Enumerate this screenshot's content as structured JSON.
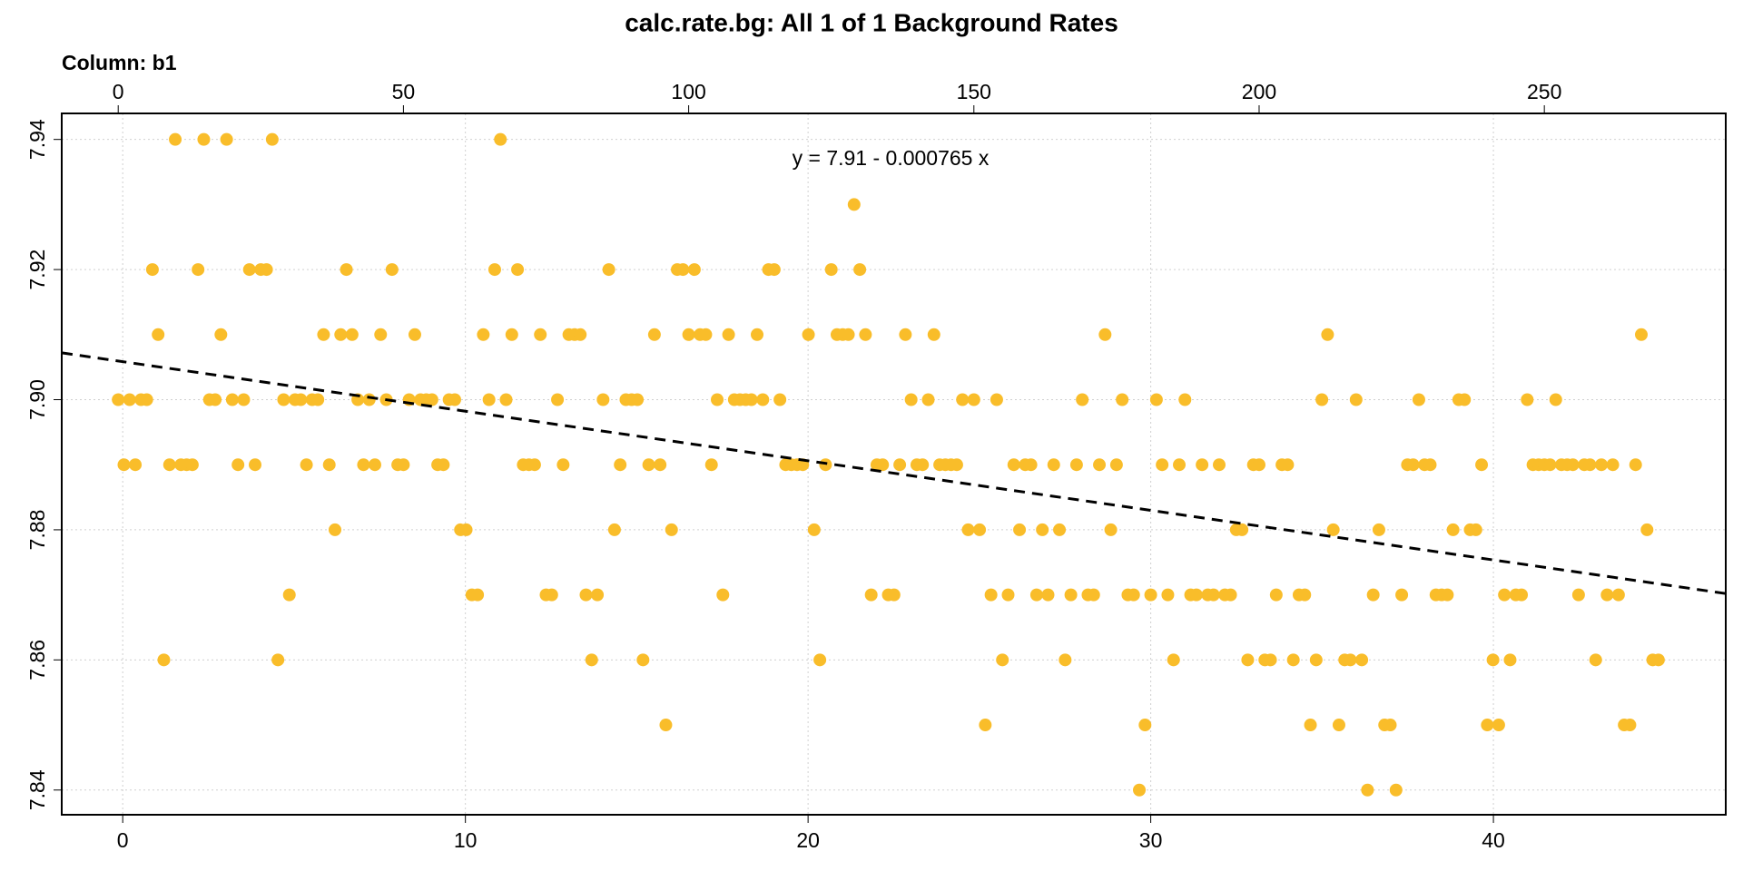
{
  "chart_data": {
    "type": "scatter",
    "title": "calc.rate.bg: All 1 of 1 Background Rates",
    "subtitle": "Column: b1",
    "annotation": "y = 7.91 - 0.000765 x",
    "xlim": [
      -1.78,
      46.78
    ],
    "xticks": [
      0,
      10,
      20,
      30,
      40
    ],
    "x2lim": [
      -9.9,
      281.8
    ],
    "x2ticks": [
      0,
      50,
      100,
      150,
      200,
      250
    ],
    "ylim": [
      7.8362,
      7.944
    ],
    "yticks": [
      7.84,
      7.86,
      7.88,
      {
        "value": 7.9,
        "label": "7.90"
      },
      7.92,
      7.94
    ],
    "grid": true,
    "x_tick_color": "#0000ff",
    "x2_tick_color": "#ff0000",
    "series": [
      {
        "color": "#f9bd2a",
        "axis": "x2",
        "x": [
          0,
          1,
          2,
          3,
          4,
          5,
          6,
          7,
          8,
          9,
          10,
          11,
          12,
          13,
          14,
          15,
          16,
          17,
          18,
          19,
          20,
          21,
          22,
          23,
          24,
          25,
          26,
          27,
          28,
          29,
          30,
          31,
          32,
          33,
          34,
          35,
          36,
          37,
          38,
          39,
          40,
          41,
          42,
          43,
          44,
          45,
          46,
          47,
          48,
          49,
          50,
          51,
          52,
          53,
          54,
          55,
          56,
          57,
          58,
          59,
          60,
          61,
          62,
          63,
          64,
          65,
          66,
          67,
          68,
          69,
          70,
          71,
          72,
          73,
          74,
          75,
          76,
          77,
          78,
          79,
          80,
          81,
          82,
          83,
          84,
          85,
          86,
          87,
          88,
          89,
          90,
          91,
          92,
          93,
          94,
          95,
          96,
          97,
          98,
          99,
          100,
          101,
          102,
          103,
          104,
          105,
          106,
          107,
          108,
          109,
          110,
          111,
          112,
          113,
          114,
          115,
          116,
          117,
          118,
          119,
          120,
          121,
          122,
          123,
          124,
          125,
          126,
          127,
          128,
          129,
          130,
          131,
          132,
          133,
          134,
          135,
          136,
          137,
          138,
          139,
          140,
          141,
          142,
          143,
          144,
          145,
          146,
          147,
          148,
          149,
          150,
          151,
          152,
          153,
          154,
          155,
          156,
          157,
          158,
          159,
          160,
          161,
          162,
          163,
          164,
          165,
          166,
          167,
          168,
          169,
          170,
          171,
          172,
          173,
          174,
          175,
          176,
          177,
          178,
          179,
          180,
          181,
          182,
          183,
          184,
          185,
          186,
          187,
          188,
          189,
          190,
          191,
          192,
          193,
          194,
          195,
          196,
          197,
          198,
          199,
          200,
          201,
          202,
          203,
          204,
          205,
          206,
          207,
          208,
          209,
          210,
          211,
          212,
          213,
          214,
          215,
          216,
          217,
          218,
          219,
          220,
          221,
          222,
          223,
          224,
          225,
          226,
          227,
          228,
          229,
          230,
          231,
          232,
          233,
          234,
          235,
          236,
          237,
          238,
          239,
          240,
          241,
          242,
          243,
          244,
          245,
          246,
          247,
          248,
          249,
          250,
          251,
          252,
          253,
          254,
          255,
          256,
          257,
          258,
          259,
          260,
          261,
          262,
          263,
          264,
          265,
          266,
          267,
          268,
          269,
          270
        ],
        "values": [
          7.9,
          7.89,
          7.9,
          7.89,
          7.9,
          7.9,
          7.92,
          7.91,
          7.86,
          7.89,
          7.94,
          7.89,
          7.89,
          7.89,
          7.92,
          7.94,
          7.9,
          7.9,
          7.91,
          7.94,
          7.9,
          7.89,
          7.9,
          7.92,
          7.89,
          7.92,
          7.92,
          7.94,
          7.86,
          7.9,
          7.87,
          7.9,
          7.9,
          7.89,
          7.9,
          7.9,
          7.91,
          7.89,
          7.88,
          7.91,
          7.92,
          7.91,
          7.9,
          7.89,
          7.9,
          7.89,
          7.91,
          7.9,
          7.92,
          7.89,
          7.89,
          7.9,
          7.91,
          7.9,
          7.9,
          7.9,
          7.89,
          7.89,
          7.9,
          7.9,
          7.88,
          7.88,
          7.87,
          7.87,
          7.91,
          7.9,
          7.92,
          7.94,
          7.9,
          7.91,
          7.92,
          7.89,
          7.89,
          7.89,
          7.91,
          7.87,
          7.87,
          7.9,
          7.89,
          7.91,
          7.91,
          7.91,
          7.87,
          7.86,
          7.87,
          7.9,
          7.92,
          7.88,
          7.89,
          7.9,
          7.9,
          7.9,
          7.86,
          7.89,
          7.91,
          7.89,
          7.85,
          7.88,
          7.92,
          7.92,
          7.91,
          7.92,
          7.91,
          7.91,
          7.89,
          7.9,
          7.87,
          7.91,
          7.9,
          7.9,
          7.9,
          7.9,
          7.91,
          7.9,
          7.92,
          7.92,
          7.9,
          7.89,
          7.89,
          7.89,
          7.89,
          7.91,
          7.88,
          7.86,
          7.89,
          7.92,
          7.91,
          7.91,
          7.91,
          7.93,
          7.92,
          7.91,
          7.87,
          7.89,
          7.89,
          7.87,
          7.87,
          7.89,
          7.91,
          7.9,
          7.89,
          7.89,
          7.9,
          7.91,
          7.89,
          7.89,
          7.89,
          7.89,
          7.9,
          7.88,
          7.9,
          7.88,
          7.85,
          7.87,
          7.9,
          7.86,
          7.87,
          7.89,
          7.88,
          7.89,
          7.89,
          7.87,
          7.88,
          7.87,
          7.89,
          7.88,
          7.86,
          7.87,
          7.89,
          7.9,
          7.87,
          7.87,
          7.89,
          7.91,
          7.88,
          7.89,
          7.9,
          7.87,
          7.87,
          7.84,
          7.85,
          7.87,
          7.9,
          7.89,
          7.87,
          7.86,
          7.89,
          7.9,
          7.87,
          7.87,
          7.89,
          7.87,
          7.87,
          7.89,
          7.87,
          7.87,
          7.88,
          7.88,
          7.86,
          7.89,
          7.89,
          7.86,
          7.86,
          7.87,
          7.89,
          7.89,
          7.86,
          7.87,
          7.87,
          7.85,
          7.86,
          7.9,
          7.91,
          7.88,
          7.85,
          7.86,
          7.86,
          7.9,
          7.86,
          7.84,
          7.87,
          7.88,
          7.85,
          7.85,
          7.84,
          7.87,
          7.89,
          7.89,
          7.9,
          7.89,
          7.89,
          7.87,
          7.87,
          7.87,
          7.88,
          7.9,
          7.9,
          7.88,
          7.88,
          7.89,
          7.85,
          7.86,
          7.85,
          7.87,
          7.86,
          7.87,
          7.87,
          7.9,
          7.89,
          7.89,
          7.89,
          7.89,
          7.9,
          7.89,
          7.89,
          7.89,
          7.87,
          7.89,
          7.89,
          7.86,
          7.89,
          7.87,
          7.89,
          7.87,
          7.85,
          7.85,
          7.89,
          7.91,
          7.88,
          7.86,
          7.86
        ]
      }
    ],
    "trend_line": {
      "color": "#000000",
      "x": [
        -1.78,
        46.78
      ],
      "values": [
        7.9072,
        7.8702
      ]
    }
  }
}
